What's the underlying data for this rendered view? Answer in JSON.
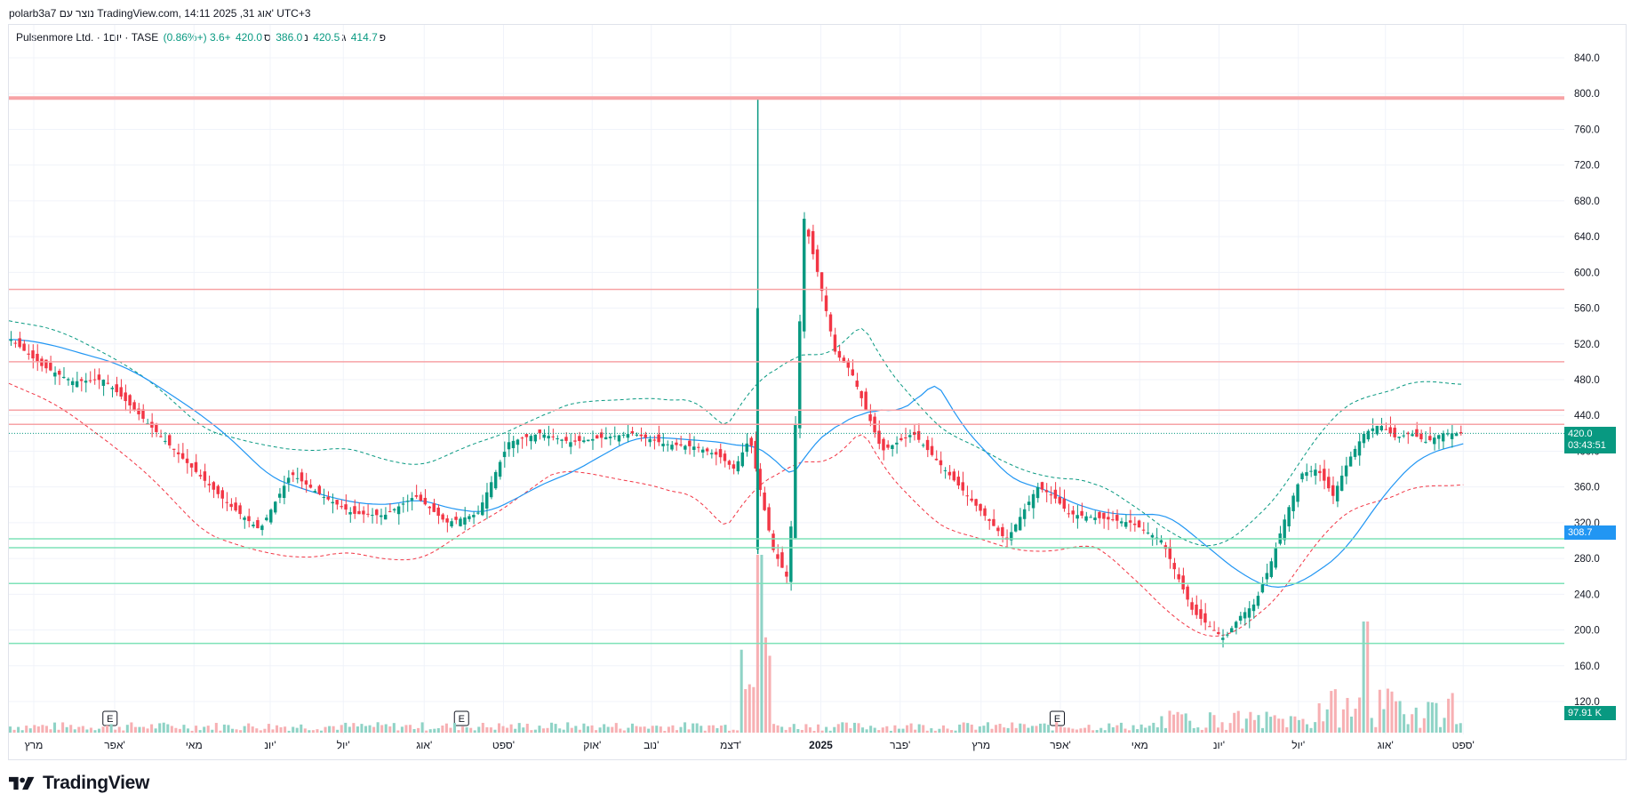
{
  "header": {
    "credit": "polarb3a7 נוצר עם TradingView.com, 14:11 2025 ,31 אוג' UTC+3"
  },
  "legend": {
    "symbol": "Pulsenmore Ltd. · 1יום · TASE",
    "open_label": "פ",
    "open": "414.7",
    "high_label": "ג",
    "high": "420.5",
    "low_label": "נ",
    "low": "386.0",
    "close_label": "ס",
    "close": "420.0",
    "change": "+3.6 (+0.86%)"
  },
  "badges": {
    "price": "420.0",
    "countdown": "03:43:51",
    "ma": "308.7",
    "volume": "97.91 K"
  },
  "brand": {
    "name": "TradingView"
  },
  "colors": {
    "up": "#089981",
    "down": "#f23645",
    "resistance": "#f7a3a6",
    "support": "#7ee2b8",
    "ma": "#2196f3",
    "band_up": "#089981",
    "band_down": "#f23645",
    "vol_up": "#8fd3c6",
    "vol_down": "#f7b0b3",
    "badge_ma": "#2196f3",
    "badge_price": "#089981"
  },
  "chart_data": {
    "type": "candlestick",
    "y_ticks": [
      "840.0",
      "800.0",
      "760.0",
      "720.0",
      "680.0",
      "640.0",
      "600.0",
      "560.0",
      "520.0",
      "480.0",
      "440.0",
      "400.0",
      "360.0",
      "320.0",
      "280.0",
      "240.0",
      "200.0",
      "160.0",
      "120.0"
    ],
    "ylim": [
      100,
      860
    ],
    "x_labels": [
      "מרץ",
      "אפר'",
      "מאי",
      "יונ'",
      "יול'",
      "אוג'",
      "ספט'",
      "אוק'",
      "נוב'",
      "דצמ'",
      "2025",
      "פבר'",
      "מרץ",
      "אפר'",
      "מאי",
      "יונ'",
      "יול'",
      "אוג'",
      "ספט'"
    ],
    "x_label_positions": [
      0.016,
      0.068,
      0.119,
      0.168,
      0.215,
      0.267,
      0.318,
      0.375,
      0.413,
      0.464,
      0.522,
      0.573,
      0.625,
      0.676,
      0.727,
      0.778,
      0.829,
      0.885,
      0.935
    ],
    "earnings_markers": [
      {
        "label": "E",
        "position": 0.065
      },
      {
        "label": "E",
        "position": 0.291
      },
      {
        "label": "E",
        "position": 0.674
      }
    ],
    "horizontal_levels": [
      {
        "price": 795,
        "kind": "resistance"
      },
      {
        "price": 581,
        "kind": "resistance"
      },
      {
        "price": 500,
        "kind": "resistance"
      },
      {
        "price": 446,
        "kind": "resistance"
      },
      {
        "price": 430,
        "kind": "resistance"
      },
      {
        "price": 302,
        "kind": "support"
      },
      {
        "price": 292,
        "kind": "support"
      },
      {
        "price": 252,
        "kind": "support"
      },
      {
        "price": 185,
        "kind": "support"
      }
    ],
    "last_price": 420.0,
    "price_series": {
      "name": "",
      "x": [
        0,
        0.02,
        0.04,
        0.06,
        0.08,
        0.1,
        0.12,
        0.14,
        0.16,
        0.18,
        0.2,
        0.22,
        0.24,
        0.26,
        0.28,
        0.3,
        0.32,
        0.34,
        0.36,
        0.38,
        0.4,
        0.42,
        0.44,
        0.455,
        0.465,
        0.475,
        0.48,
        0.485,
        0.49,
        0.5,
        0.51,
        0.52,
        0.53,
        0.54,
        0.56,
        0.58,
        0.6,
        0.62,
        0.64,
        0.66,
        0.67,
        0.68,
        0.7,
        0.72,
        0.74,
        0.76,
        0.77,
        0.78,
        0.79,
        0.8,
        0.81,
        0.82,
        0.83,
        0.84,
        0.85,
        0.86,
        0.87,
        0.88,
        0.89,
        0.9,
        0.91,
        0.92,
        0.925,
        0.93,
        0.935
      ],
      "close": [
        525,
        495,
        478,
        480,
        445,
        410,
        375,
        340,
        312,
        375,
        350,
        330,
        328,
        350,
        320,
        330,
        410,
        420,
        410,
        415,
        420,
        408,
        405,
        395,
        380,
        415,
        370,
        330,
        290,
        255,
        660,
        590,
        510,
        490,
        400,
        420,
        380,
        340,
        300,
        360,
        350,
        330,
        325,
        320,
        300,
        220,
        205,
        190,
        215,
        230,
        275,
        330,
        375,
        380,
        350,
        390,
        420,
        430,
        415,
        420,
        410,
        420,
        420,
        420,
        420
      ]
    },
    "volume_series": {
      "name": "",
      "note": "relative bar heights"
    }
  }
}
